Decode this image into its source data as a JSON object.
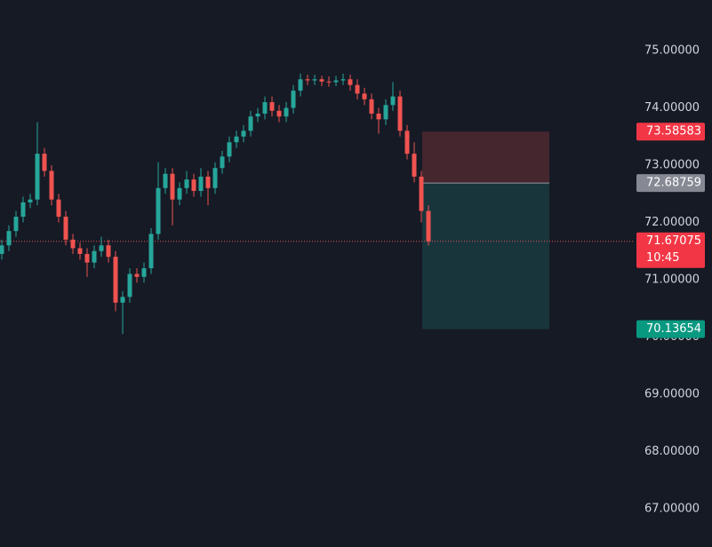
{
  "chart_data": {
    "type": "candlestick",
    "open": [
      71.45,
      71.6,
      71.85,
      72.1,
      72.35,
      72.4,
      73.2,
      72.9,
      72.4,
      72.1,
      71.7,
      71.55,
      71.45,
      71.3,
      71.5,
      71.6,
      71.4,
      70.6,
      70.7,
      71.1,
      71.05,
      71.2,
      71.8,
      72.6,
      72.85,
      72.4,
      72.6,
      72.75,
      72.55,
      72.8,
      72.6,
      72.95,
      73.15,
      73.4,
      73.5,
      73.6,
      73.85,
      73.9,
      74.1,
      73.95,
      73.85,
      74.0,
      74.3,
      74.5,
      74.48,
      74.5,
      74.46,
      74.45,
      74.48,
      74.5,
      74.4,
      74.25,
      74.15,
      73.9,
      73.8,
      74.05,
      74.2,
      73.6,
      73.2,
      72.8,
      72.2
    ],
    "high": [
      71.7,
      71.95,
      72.2,
      72.45,
      72.5,
      73.75,
      73.3,
      73.0,
      72.5,
      72.2,
      71.8,
      71.65,
      71.55,
      71.6,
      71.75,
      71.7,
      71.5,
      70.8,
      71.2,
      71.2,
      71.3,
      71.9,
      73.05,
      72.95,
      72.95,
      72.7,
      72.9,
      72.85,
      72.95,
      72.9,
      73.05,
      73.25,
      73.5,
      73.6,
      73.7,
      73.95,
      74.0,
      74.2,
      74.2,
      74.05,
      74.1,
      74.4,
      74.6,
      74.58,
      74.58,
      74.56,
      74.55,
      74.56,
      74.6,
      74.58,
      74.5,
      74.35,
      74.25,
      74.0,
      74.15,
      74.45,
      74.3,
      73.7,
      73.4,
      72.9,
      72.3
    ],
    "low": [
      71.35,
      71.5,
      71.75,
      72.0,
      72.25,
      72.3,
      72.8,
      72.3,
      72.0,
      71.6,
      71.45,
      71.35,
      71.05,
      71.2,
      71.4,
      71.3,
      70.45,
      70.05,
      70.6,
      70.95,
      70.95,
      71.1,
      71.7,
      72.5,
      71.95,
      72.3,
      72.5,
      72.45,
      72.45,
      72.3,
      72.5,
      72.85,
      73.05,
      73.3,
      73.4,
      73.5,
      73.75,
      73.8,
      73.85,
      73.75,
      73.75,
      73.9,
      74.2,
      74.4,
      74.4,
      74.38,
      74.37,
      74.38,
      74.4,
      74.3,
      74.15,
      74.05,
      73.8,
      73.55,
      73.7,
      73.95,
      73.5,
      73.1,
      72.7,
      72.0,
      71.6
    ],
    "close": [
      71.6,
      71.85,
      72.1,
      72.35,
      72.4,
      73.2,
      72.9,
      72.4,
      72.1,
      71.7,
      71.55,
      71.45,
      71.3,
      71.5,
      71.6,
      71.4,
      70.6,
      70.7,
      71.1,
      71.05,
      71.2,
      71.8,
      72.6,
      72.85,
      72.4,
      72.6,
      72.75,
      72.55,
      72.8,
      72.6,
      72.95,
      73.15,
      73.4,
      73.5,
      73.6,
      73.85,
      73.9,
      74.1,
      73.95,
      73.85,
      74.0,
      74.3,
      74.5,
      74.48,
      74.5,
      74.46,
      74.45,
      74.48,
      74.5,
      74.4,
      74.25,
      74.15,
      73.9,
      73.8,
      74.05,
      74.2,
      73.6,
      73.2,
      72.8,
      72.2,
      71.67075
    ],
    "up_color": "#26a69a",
    "down_color": "#ef5350",
    "ylim": [
      66.333,
      75.884
    ],
    "yticks": [
      {
        "value": 75,
        "label": "75.00000"
      },
      {
        "value": 74,
        "label": "74.00000"
      },
      {
        "value": 73,
        "label": "73.00000"
      },
      {
        "value": 72,
        "label": "72.00000"
      },
      {
        "value": 71,
        "label": "71.00000"
      },
      {
        "value": 70,
        "label": "70.00000"
      },
      {
        "value": 69,
        "label": "69.00000"
      },
      {
        "value": 68,
        "label": "68.00000"
      },
      {
        "value": 67,
        "label": "67.00000"
      }
    ],
    "position": {
      "stop": 73.58583,
      "entry": 72.68759,
      "target": 70.13654
    },
    "last_price": 71.67075,
    "countdown": "10:45"
  }
}
